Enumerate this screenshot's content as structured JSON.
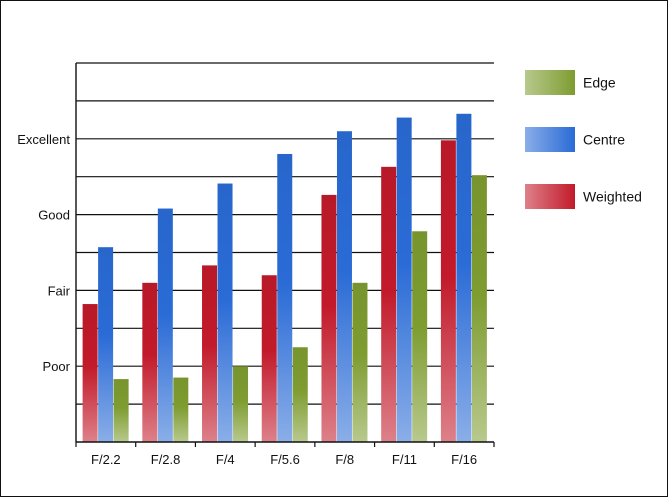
{
  "chart_data": {
    "type": "bar",
    "title": "",
    "xlabel": "",
    "ylabel": "",
    "categories": [
      "F/2.2",
      "F/2.8",
      "F/4",
      "F/5.6",
      "F/8",
      "F/11",
      "F/16"
    ],
    "y_tick_labels": [
      "Poor",
      "Fair",
      "Good",
      "Excellent"
    ],
    "y_tick_values": [
      1,
      2,
      3,
      4
    ],
    "ylim": [
      0,
      5
    ],
    "grid": true,
    "legend_position": "right",
    "series": [
      {
        "name": "Weighted",
        "color": "#c21a2a",
        "values": [
          1.82,
          2.1,
          2.33,
          2.2,
          3.26,
          3.63,
          3.98
        ]
      },
      {
        "name": "Centre",
        "color": "#2a6bd6",
        "values": [
          2.57,
          3.08,
          3.41,
          3.8,
          4.1,
          4.28,
          4.33
        ]
      },
      {
        "name": "Edge",
        "color": "#7e9c30",
        "values": [
          0.83,
          0.85,
          1.0,
          1.25,
          2.1,
          2.78,
          3.52
        ]
      }
    ],
    "legend_order": [
      "Edge",
      "Centre",
      "Weighted"
    ]
  }
}
